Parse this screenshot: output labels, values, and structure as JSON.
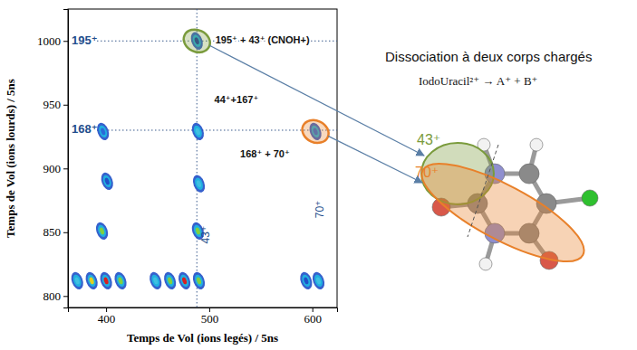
{
  "chart_data": {
    "type": "scatter",
    "xlabel": "Temps de Vol (ions legés) / 5ns",
    "ylabel": "Temps de Vol (ions lourds) / 5ns",
    "xlim": [
      363,
      624
    ],
    "ylim": [
      791,
      1025
    ],
    "xticks": [
      400,
      500,
      600
    ],
    "yticks": [
      800,
      850,
      900,
      950,
      1000
    ],
    "grid": false,
    "series": [
      {
        "marker": "island",
        "x": [
          488,
          489,
          397,
          603,
          490,
          401,
          489,
          396,
          372,
          386,
          400,
          414,
          448,
          462,
          476,
          490,
          594,
          606
        ],
        "values": [
          1000,
          929,
          929,
          929,
          888,
          890,
          851,
          851,
          812,
          812,
          812,
          812,
          812,
          812,
          812,
          812,
          812,
          812
        ],
        "colors": [
          "#1a3aa0",
          "#40c0e0",
          "#2a6ad8",
          "#2a6ad8",
          "#40c0e0",
          "#2050c8",
          "#80d040",
          "#80d040",
          "#40c0e0",
          "#e0d020",
          "#d82020",
          "#80d040",
          "#40c0e0",
          "#80d040",
          "#d82020",
          "#80d040",
          "#2050c8",
          "#40c0e0"
        ]
      }
    ],
    "guides": [
      {
        "axis": "y",
        "value": 1000,
        "label": "195⁺"
      },
      {
        "axis": "y",
        "value": 930,
        "label": "168⁺"
      },
      {
        "axis": "x",
        "value": 488
      }
    ],
    "annotations": [
      {
        "text": "195⁺ + 43⁺ (CNOH+)",
        "x": 506,
        "y": 1000
      },
      {
        "text": "44⁺+167⁺",
        "x": 505,
        "y": 953
      },
      {
        "text": "168⁺ + 70⁺",
        "x": 530,
        "y": 911
      }
    ],
    "vertical_labels": [
      {
        "text": "43⁺",
        "x": 500,
        "y": 848
      },
      {
        "text": "70⁺",
        "x": 611,
        "y": 868
      }
    ],
    "rings": [
      {
        "x": 488,
        "y": 1000,
        "color": "#7a9b3c"
      },
      {
        "x": 603,
        "y": 929,
        "color": "#e8802a"
      }
    ]
  },
  "diagram": {
    "title": "Dissociation à deux corps chargés",
    "equation": "IodoUracil²⁺ → A⁺ + B⁺",
    "fragments": [
      {
        "label": "43⁺"
      },
      {
        "label": "70⁺"
      }
    ]
  }
}
